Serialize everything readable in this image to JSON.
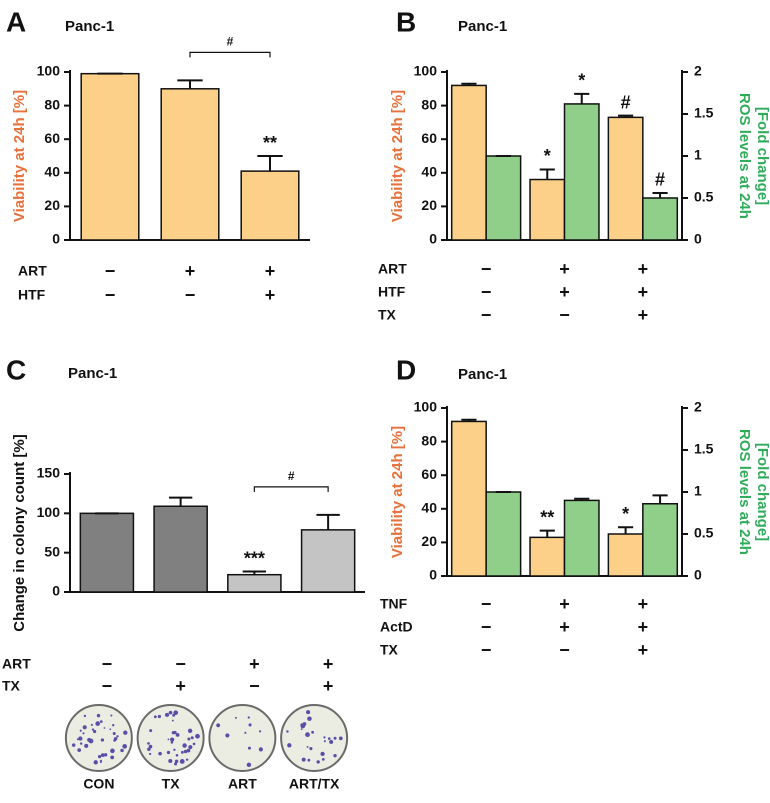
{
  "chart_data": [
    {
      "type": "bar",
      "panel": "A",
      "title": "Panc-1",
      "ylabel": "Viability at 24h [%]",
      "ylabel_color": "#e8703a",
      "ylim": [
        0,
        100
      ],
      "yticks": [
        0,
        20,
        40,
        60,
        80,
        100
      ],
      "categories": [
        null,
        null,
        null
      ],
      "series": [
        {
          "color": "#fdd08a",
          "values": [
            99,
            90,
            41
          ],
          "errors": [
            0,
            5,
            9
          ],
          "annotations": [
            null,
            null,
            "**"
          ]
        }
      ],
      "bracket_label": "#",
      "conditions": [
        {
          "label": "ART",
          "signs": [
            "−",
            "+",
            "+"
          ]
        },
        {
          "label": "HTF",
          "signs": [
            "−",
            "−",
            "+"
          ]
        }
      ]
    },
    {
      "type": "bar",
      "panel": "B",
      "title": "Panc-1",
      "ylabel": "Viability at 24h [%]",
      "ylabel_color": "#e8703a",
      "y2label": [
        "ROS levels at 24h",
        "[Fold change]"
      ],
      "y2label_color": "#2fad5a",
      "ylim": [
        0,
        100
      ],
      "yticks": [
        0,
        20,
        40,
        60,
        80,
        100
      ],
      "y2lim": [
        0,
        2
      ],
      "y2ticks": [
        0,
        0.5,
        1,
        1.5,
        2
      ],
      "categories": [
        null,
        null,
        null
      ],
      "series": [
        {
          "color": "#fdd08a",
          "values": [
            92,
            36,
            73
          ],
          "errors": [
            1,
            6,
            1
          ],
          "annotations": [
            null,
            "*",
            "#"
          ]
        },
        {
          "color": "#8fcf8a",
          "axis": "y2",
          "values": [
            1,
            1.62,
            0.5
          ],
          "errors": [
            0,
            0.12,
            0.06
          ],
          "annotations": [
            null,
            "*",
            "#"
          ]
        }
      ],
      "conditions": [
        {
          "label": "ART",
          "signs": [
            "−",
            "+",
            "+"
          ]
        },
        {
          "label": "HTF",
          "signs": [
            "−",
            "+",
            "+"
          ]
        },
        {
          "label": "TX",
          "signs": [
            "−",
            "−",
            "+"
          ]
        }
      ]
    },
    {
      "type": "bar",
      "panel": "C",
      "title": "Panc-1",
      "ylabel": "Change in colony count [%]",
      "ylabel_color": "#111111",
      "ylim": [
        0,
        150
      ],
      "yticks": [
        0,
        50,
        100,
        150
      ],
      "categories": [
        null,
        null,
        null,
        null
      ],
      "series": [
        {
          "colors": [
            "#808080",
            "#808080",
            "#c4c4c4",
            "#c4c4c4"
          ],
          "values": [
            100,
            109,
            22,
            79
          ],
          "errors": [
            0,
            11,
            4,
            19
          ],
          "annotations": [
            null,
            null,
            "***",
            null
          ]
        }
      ],
      "bracket_label": "#",
      "conditions": [
        {
          "label": "ART",
          "signs": [
            "−",
            "−",
            "+",
            "+"
          ]
        },
        {
          "label": "TX",
          "signs": [
            "−",
            "+",
            "−",
            "+"
          ]
        }
      ],
      "images": [
        "CON",
        "TX",
        "ART",
        "ART/TX"
      ]
    },
    {
      "type": "bar",
      "panel": "D",
      "title": "Panc-1",
      "ylabel": "Viability at 24h [%]",
      "ylabel_color": "#e8703a",
      "y2label": [
        "ROS levels at 24h",
        "[Fold change]"
      ],
      "y2label_color": "#2fad5a",
      "ylim": [
        0,
        100
      ],
      "yticks": [
        0,
        20,
        40,
        60,
        80,
        100
      ],
      "y2lim": [
        0,
        2
      ],
      "y2ticks": [
        0,
        0.5,
        1,
        1.5,
        2
      ],
      "categories": [
        null,
        null,
        null
      ],
      "series": [
        {
          "color": "#fdd08a",
          "values": [
            92,
            23,
            25
          ],
          "errors": [
            1,
            4,
            4
          ],
          "annotations": [
            null,
            "**",
            "*"
          ]
        },
        {
          "color": "#8fcf8a",
          "axis": "y2",
          "values": [
            1,
            0.9,
            0.86
          ],
          "errors": [
            0,
            0.02,
            0.1
          ],
          "annotations": [
            null,
            null,
            null
          ]
        }
      ],
      "conditions": [
        {
          "label": "TNF",
          "signs": [
            "−",
            "+",
            "+"
          ]
        },
        {
          "label": "ActD",
          "signs": [
            "−",
            "+",
            "+"
          ]
        },
        {
          "label": "TX",
          "signs": [
            "−",
            "−",
            "+"
          ]
        }
      ]
    }
  ]
}
